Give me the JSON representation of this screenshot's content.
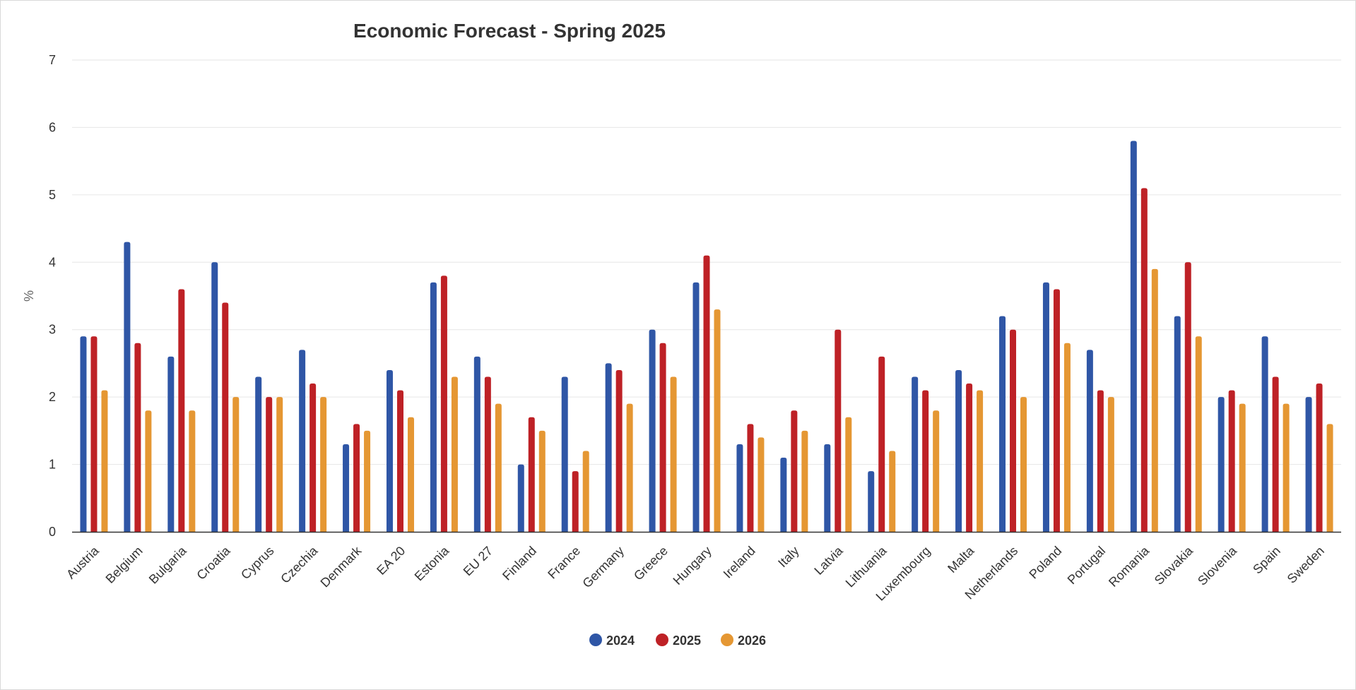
{
  "chart_data": {
    "type": "bar",
    "title": "Economic Forecast - Spring 2025",
    "xlabel": "",
    "ylabel": "%",
    "ylim": [
      0,
      7
    ],
    "yticks": [
      0,
      1,
      2,
      3,
      4,
      5,
      6,
      7
    ],
    "grid": true,
    "legend_position": "bottom-center",
    "categories": [
      "Austria",
      "Belgium",
      "Bulgaria",
      "Croatia",
      "Cyprus",
      "Czechia",
      "Denmark",
      "EA 20",
      "Estonia",
      "EU 27",
      "Finland",
      "France",
      "Germany",
      "Greece",
      "Hungary",
      "Ireland",
      "Italy",
      "Latvia",
      "Lithuania",
      "Luxembourg",
      "Malta",
      "Netherlands",
      "Poland",
      "Portugal",
      "Romania",
      "Slovakia",
      "Slovenia",
      "Spain",
      "Sweden"
    ],
    "series": [
      {
        "name": "2024",
        "color": "#2f56a6",
        "values": [
          2.9,
          4.3,
          2.6,
          4.0,
          2.3,
          2.7,
          1.3,
          2.4,
          3.7,
          2.6,
          1.0,
          2.3,
          2.5,
          3.0,
          3.7,
          1.3,
          1.1,
          1.3,
          0.9,
          2.3,
          2.4,
          3.2,
          3.7,
          2.7,
          5.8,
          3.2,
          2.0,
          2.9,
          2.0
        ]
      },
      {
        "name": "2025",
        "color": "#be2126",
        "values": [
          2.9,
          2.8,
          3.6,
          3.4,
          2.0,
          2.2,
          1.6,
          2.1,
          3.8,
          2.3,
          1.7,
          0.9,
          2.4,
          2.8,
          4.1,
          1.6,
          1.8,
          3.0,
          2.6,
          2.1,
          2.2,
          3.0,
          3.6,
          2.1,
          5.1,
          4.0,
          2.1,
          2.3,
          2.2
        ]
      },
      {
        "name": "2026",
        "color": "#e59733",
        "values": [
          2.1,
          1.8,
          1.8,
          2.0,
          2.0,
          2.0,
          1.5,
          1.7,
          2.3,
          1.9,
          1.5,
          1.2,
          1.9,
          2.3,
          3.3,
          1.4,
          1.5,
          1.7,
          1.2,
          1.8,
          2.1,
          2.0,
          2.8,
          2.0,
          3.9,
          2.9,
          1.9,
          1.9,
          1.6
        ]
      }
    ]
  },
  "colors": {
    "grid": "#e6e6e6",
    "axis": "#333333",
    "text": "#333333"
  }
}
